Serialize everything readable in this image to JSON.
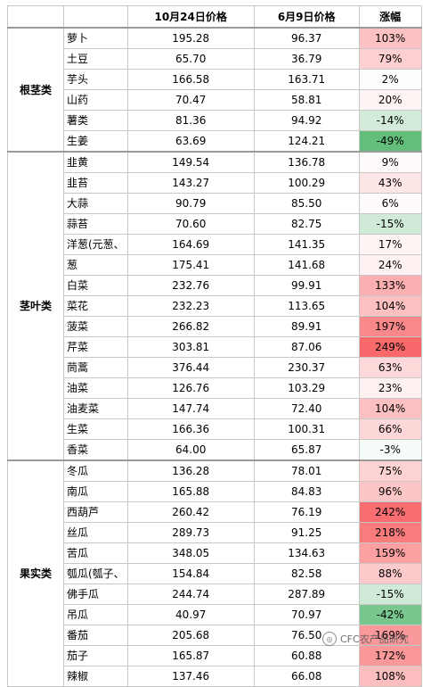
{
  "headers": [
    "",
    "",
    "10月24日价格",
    "6月9日价格",
    "涨幅"
  ],
  "colors": {
    "pos_max": "#f8696b",
    "neg_max": "#63be7b",
    "neutral": "#ffffff",
    "grid": "#c8c8c8"
  },
  "groups": [
    {
      "name": "根茎类",
      "rows": [
        {
          "name": "萝卜",
          "oct24": "195.28",
          "jun9": "96.37",
          "change": "103%",
          "pct": 103
        },
        {
          "name": "土豆",
          "oct24": "65.70",
          "jun9": "36.79",
          "change": "79%",
          "pct": 79
        },
        {
          "name": "芋头",
          "oct24": "166.58",
          "jun9": "163.71",
          "change": "2%",
          "pct": 2
        },
        {
          "name": "山药",
          "oct24": "70.47",
          "jun9": "58.81",
          "change": "20%",
          "pct": 20
        },
        {
          "name": "薯类",
          "oct24": "81.36",
          "jun9": "94.92",
          "change": "-14%",
          "pct": -14
        },
        {
          "name": "生姜",
          "oct24": "63.69",
          "jun9": "124.21",
          "change": "-49%",
          "pct": -49
        }
      ]
    },
    {
      "name": "茎叶类",
      "rows": [
        {
          "name": "韭黄",
          "oct24": "149.54",
          "jun9": "136.78",
          "change": "9%",
          "pct": 9
        },
        {
          "name": "韭苔",
          "oct24": "143.27",
          "jun9": "100.29",
          "change": "43%",
          "pct": 43
        },
        {
          "name": "大蒜",
          "oct24": "90.79",
          "jun9": "85.50",
          "change": "6%",
          "pct": 6
        },
        {
          "name": "蒜苔",
          "oct24": "70.60",
          "jun9": "82.75",
          "change": "-15%",
          "pct": -15
        },
        {
          "name": "洋葱(元葱、",
          "oct24": "164.69",
          "jun9": "141.35",
          "change": "17%",
          "pct": 17
        },
        {
          "name": "葱",
          "oct24": "175.41",
          "jun9": "141.68",
          "change": "24%",
          "pct": 24
        },
        {
          "name": "白菜",
          "oct24": "232.76",
          "jun9": "99.91",
          "change": "133%",
          "pct": 133
        },
        {
          "name": "菜花",
          "oct24": "232.23",
          "jun9": "113.65",
          "change": "104%",
          "pct": 104
        },
        {
          "name": "菠菜",
          "oct24": "266.82",
          "jun9": "89.91",
          "change": "197%",
          "pct": 197
        },
        {
          "name": "芹菜",
          "oct24": "303.81",
          "jun9": "87.06",
          "change": "249%",
          "pct": 249
        },
        {
          "name": "茼蒿",
          "oct24": "376.44",
          "jun9": "230.37",
          "change": "63%",
          "pct": 63
        },
        {
          "name": "油菜",
          "oct24": "126.76",
          "jun9": "103.29",
          "change": "23%",
          "pct": 23
        },
        {
          "name": "油麦菜",
          "oct24": "147.74",
          "jun9": "72.40",
          "change": "104%",
          "pct": 104
        },
        {
          "name": "生菜",
          "oct24": "166.36",
          "jun9": "100.31",
          "change": "66%",
          "pct": 66
        },
        {
          "name": "香菜",
          "oct24": "64.00",
          "jun9": "65.87",
          "change": "-3%",
          "pct": -3
        }
      ]
    },
    {
      "name": "果实类",
      "rows": [
        {
          "name": "冬瓜",
          "oct24": "136.28",
          "jun9": "78.01",
          "change": "75%",
          "pct": 75
        },
        {
          "name": "南瓜",
          "oct24": "165.88",
          "jun9": "84.83",
          "change": "96%",
          "pct": 96
        },
        {
          "name": "西葫芦",
          "oct24": "260.42",
          "jun9": "76.19",
          "change": "242%",
          "pct": 242
        },
        {
          "name": "丝瓜",
          "oct24": "289.73",
          "jun9": "91.25",
          "change": "218%",
          "pct": 218
        },
        {
          "name": "苦瓜",
          "oct24": "348.05",
          "jun9": "134.63",
          "change": "159%",
          "pct": 159
        },
        {
          "name": "瓠瓜(瓠子、",
          "oct24": "154.84",
          "jun9": "82.58",
          "change": "88%",
          "pct": 88
        },
        {
          "name": "佛手瓜",
          "oct24": "244.74",
          "jun9": "287.89",
          "change": "-15%",
          "pct": -15
        },
        {
          "name": "吊瓜",
          "oct24": "40.97",
          "jun9": "70.97",
          "change": "-42%",
          "pct": -42
        },
        {
          "name": "番茄",
          "oct24": "205.68",
          "jun9": "76.50",
          "change": "169%",
          "pct": 169
        },
        {
          "name": "茄子",
          "oct24": "165.87",
          "jun9": "60.88",
          "change": "172%",
          "pct": 172
        },
        {
          "name": "辣椒",
          "oct24": "137.46",
          "jun9": "66.08",
          "change": "108%",
          "pct": 108
        }
      ]
    }
  ],
  "watermark": "CFC农产品研究"
}
